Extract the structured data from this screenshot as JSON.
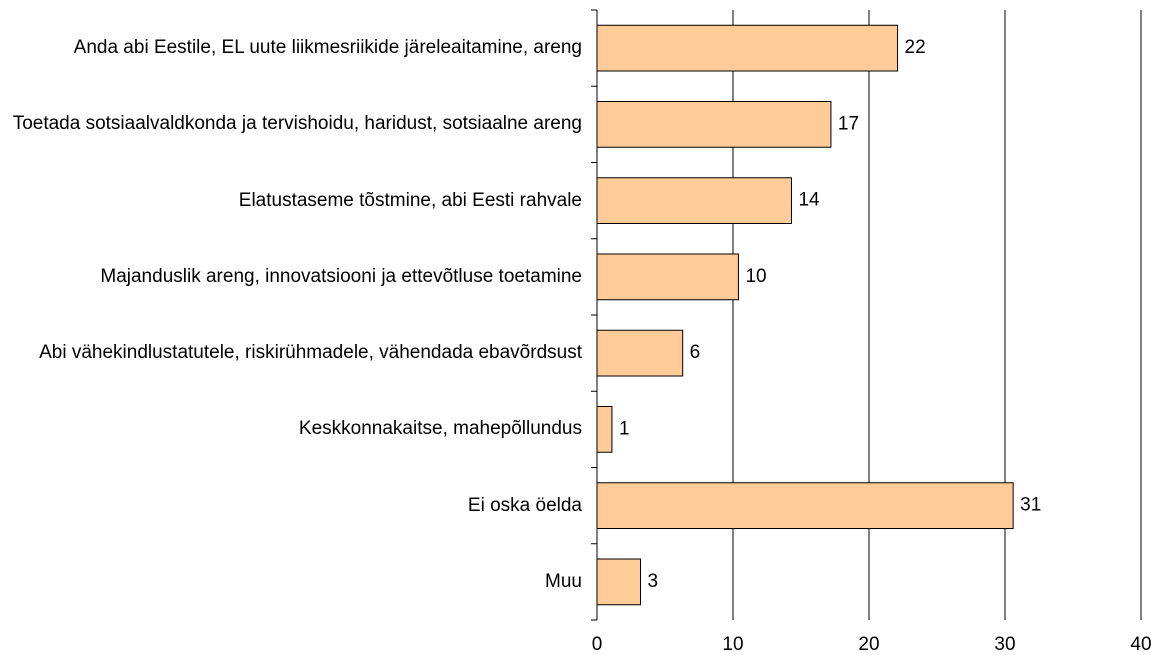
{
  "chart_data": {
    "type": "bar",
    "orientation": "horizontal",
    "categories": [
      "Anda abi Eestile, EL uute liikmesriikide järeleaitamine, areng",
      "Toetada sotsiaalvaldkonda ja tervishoidu, haridust, sotsiaalne areng",
      "Elatustaseme tõstmine, abi Eesti rahvale",
      "Majanduslik areng, innovatsiooni ja ettevõtluse toetamine",
      "Abi vähekindlustatutele, riskirühmadele, vähendada ebavõrdsust",
      "Keskkonnakaitse, mahepõllundus",
      "Ei oska öelda",
      "Muu"
    ],
    "values": [
      22.1,
      17.2,
      14.3,
      10.4,
      6.3,
      1.1,
      30.6,
      3.2
    ],
    "value_labels": [
      "22",
      "17",
      "14",
      "10",
      "6",
      "1",
      "31",
      "3"
    ],
    "color": "#ffcc99",
    "xlim": [
      0,
      40
    ],
    "xticks": [
      0,
      10,
      20,
      30,
      40
    ],
    "grid": true
  }
}
